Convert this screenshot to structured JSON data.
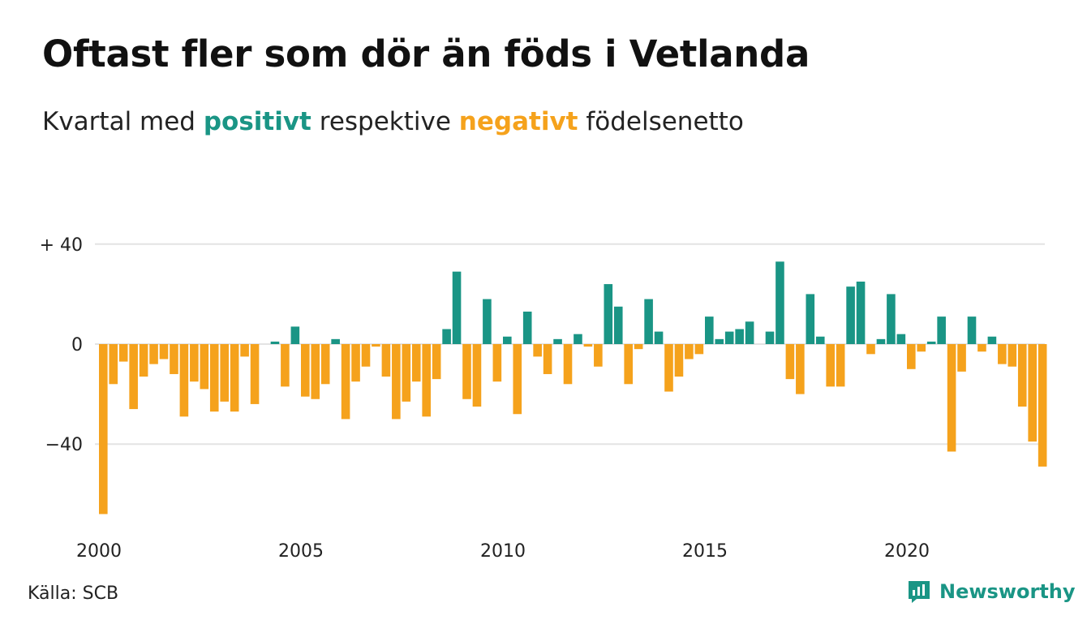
{
  "title": "Oftast fler som dör än föds i Vetlanda",
  "subtitle": {
    "prefix": "Kvartal med",
    "positive": "positivt",
    "middle": "respektive",
    "negative": "negativt",
    "suffix": "födelsenetto"
  },
  "source": "Källa: SCB",
  "logo": {
    "name": "Newsworthy",
    "icon": "newsworthy-chart-icon"
  },
  "colors": {
    "positive": "#1a9585",
    "negative": "#f5a21c",
    "grid": "#e3e3e3"
  },
  "chart_data": {
    "type": "bar",
    "title": "Oftast fler som dör än föds i Vetlanda",
    "xlabel": "",
    "ylabel": "",
    "ylim": [
      -68,
      40
    ],
    "y_ticks": [
      {
        "value": 40,
        "label": "+ 40"
      },
      {
        "value": 0,
        "label": "0"
      },
      {
        "value": -40,
        "label": "−40"
      }
    ],
    "x_ticks": [
      {
        "value": 2000,
        "label": "2000"
      },
      {
        "value": 2005,
        "label": "2005"
      },
      {
        "value": 2010,
        "label": "2010"
      },
      {
        "value": 2015,
        "label": "2015"
      },
      {
        "value": 2020,
        "label": "2020"
      }
    ],
    "grid": true,
    "start_year": 2000,
    "series": [
      {
        "values": [
          -68,
          -16,
          -7,
          -26,
          -13,
          -8,
          -6,
          -12,
          -29,
          -15,
          -18,
          -27,
          -23,
          -27,
          -5,
          -24,
          0,
          1,
          -17,
          7,
          -21,
          -22,
          -16,
          2,
          -30,
          -15,
          -9,
          -1,
          -13,
          -30,
          -23,
          -15,
          -29,
          -14,
          6,
          29,
          -22,
          -25,
          18,
          -15,
          3,
          -28,
          13,
          -5,
          -12,
          2,
          -16,
          4,
          -1,
          -9,
          24,
          15,
          -16,
          -2,
          18,
          5,
          -19,
          -13,
          -6,
          -4,
          11,
          2,
          5,
          6,
          9,
          0,
          5,
          33,
          -14,
          -20,
          20,
          3,
          -17,
          -17,
          23,
          25,
          -4,
          2,
          20,
          4,
          -10,
          -3,
          1,
          11,
          -43,
          -11,
          11,
          -3,
          3,
          -8,
          -9,
          -25,
          -39,
          -49
        ]
      }
    ]
  }
}
